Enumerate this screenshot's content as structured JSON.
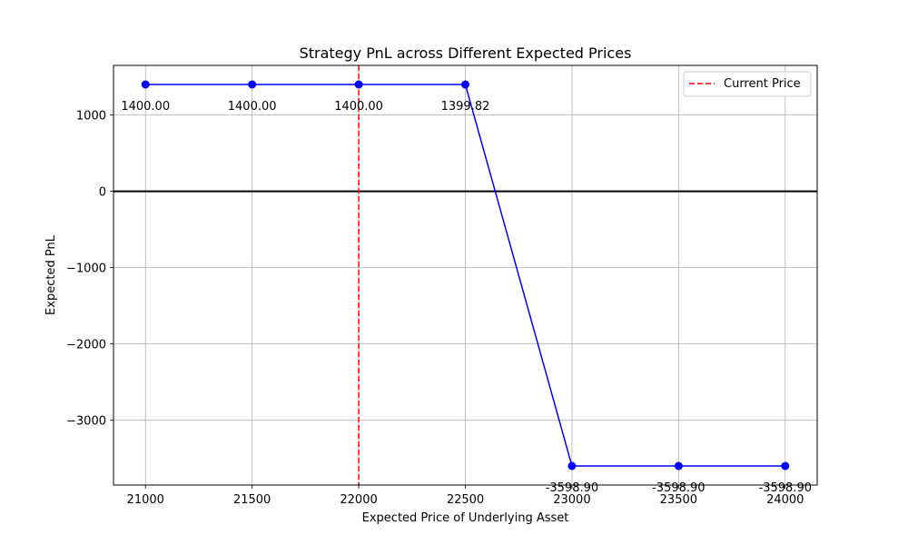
{
  "chart_data": {
    "type": "line",
    "title": "Strategy PnL across Different Expected Prices",
    "xlabel": "Expected Price of Underlying Asset",
    "ylabel": "Expected PnL",
    "x": [
      21000,
      21500,
      22000,
      22500,
      23000,
      23500,
      24000
    ],
    "series": [
      {
        "values": [
          1400.0,
          1400.0,
          1400.0,
          1399.82,
          -3598.9,
          -3598.9,
          -3598.9
        ],
        "color": "#0000ff",
        "marker": "circle"
      }
    ],
    "data_labels": [
      "1400.00",
      "1400.00",
      "1400.00",
      "1399.82",
      "-3598.90",
      "-3598.90",
      "-3598.90"
    ],
    "xticks": [
      21000,
      21500,
      22000,
      22500,
      23000,
      23500,
      24000
    ],
    "yticks": [
      1000,
      0,
      -1000,
      -2000,
      -3000
    ],
    "ytick_labels": [
      "1000",
      "0",
      "−1000",
      "−2000",
      "−3000"
    ],
    "xlim": [
      20850,
      24150
    ],
    "ylim": [
      -3848.9,
      1650
    ],
    "grid": true,
    "zero_line": {
      "y": 0,
      "color": "#000000"
    },
    "reference_line": {
      "name": "Current Price",
      "x": 22000,
      "color": "#ff0000",
      "style": "dashed"
    },
    "legend": {
      "position": "top-right",
      "entries": [
        "Current Price"
      ]
    }
  }
}
